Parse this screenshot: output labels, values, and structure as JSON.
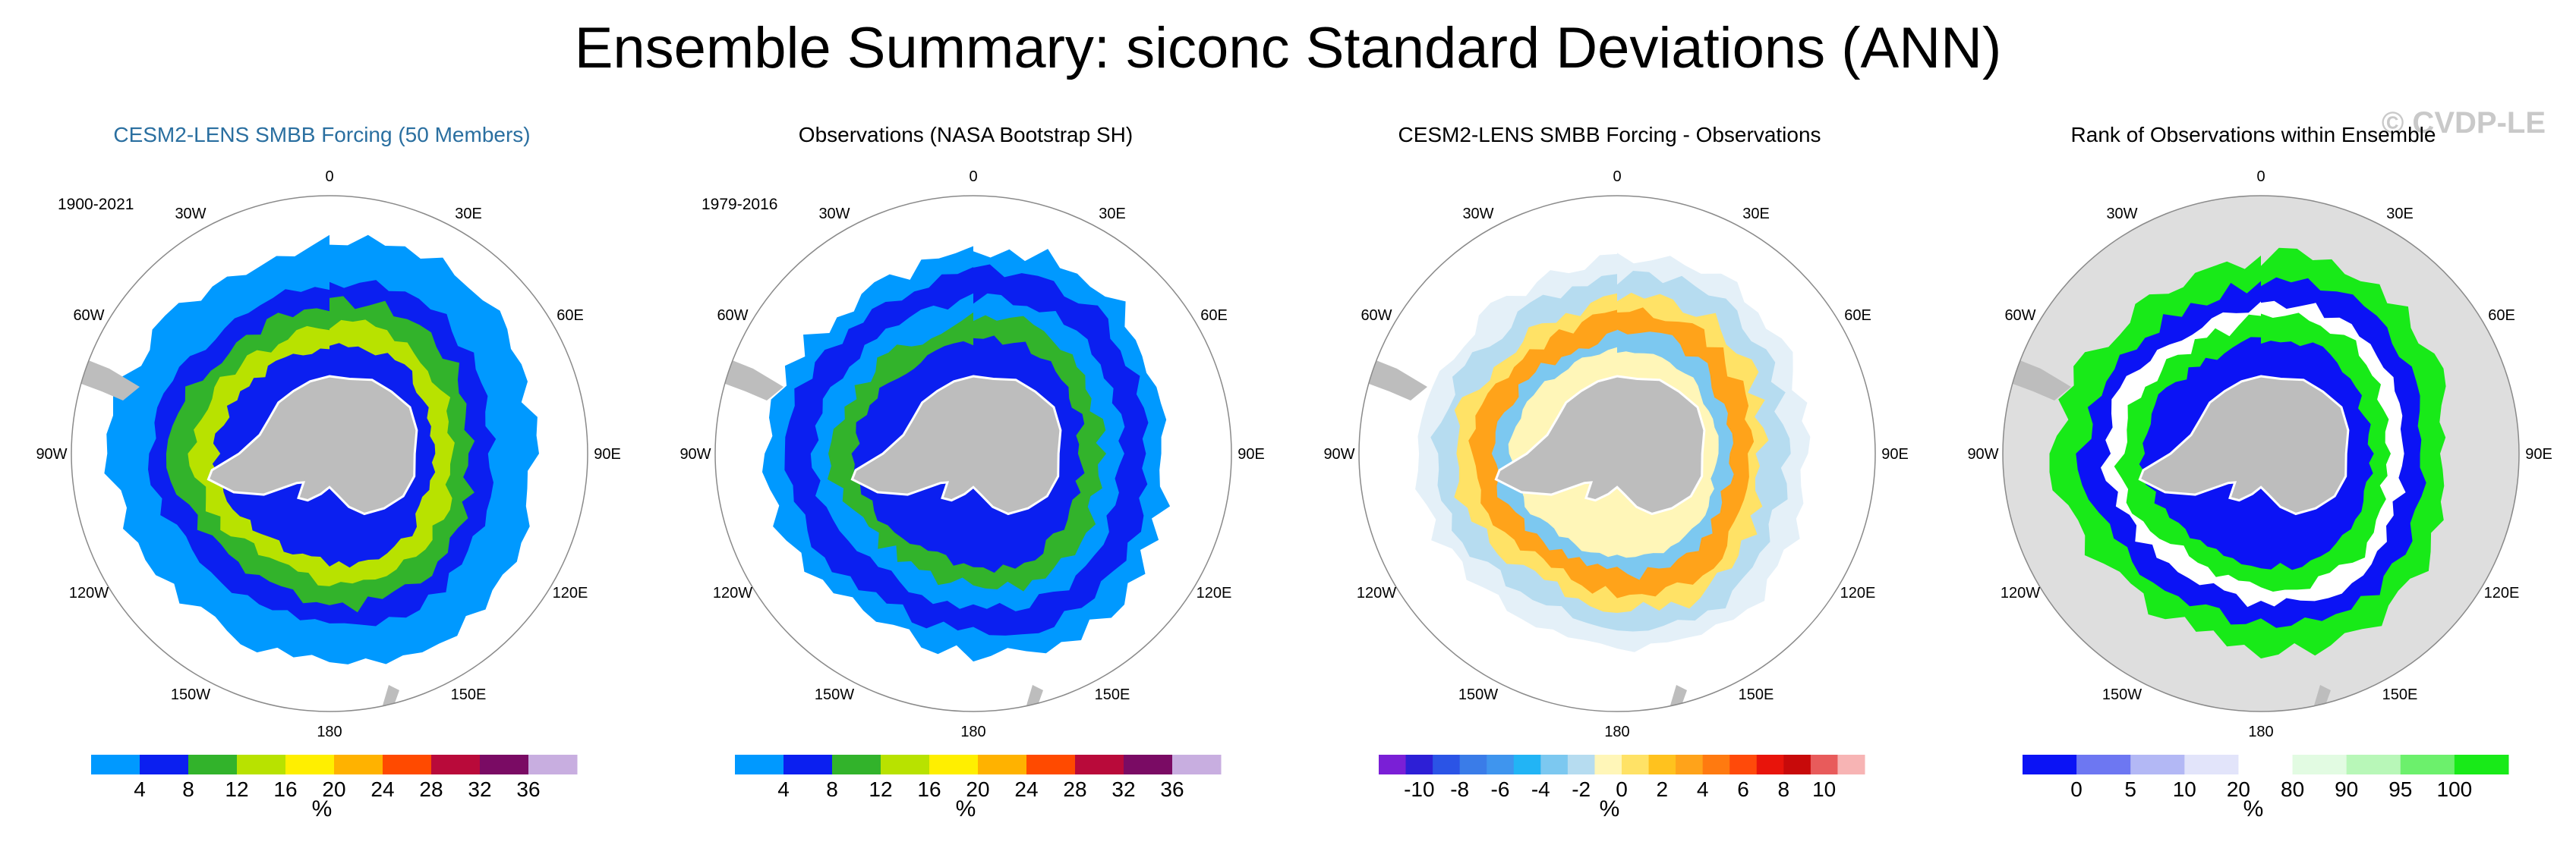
{
  "title": "Ensemble Summary: siconc Standard Deviations (ANN)",
  "watermark": "© CVDP-LE",
  "lon_labels": [
    "0",
    "30E",
    "60E",
    "90E",
    "120E",
    "150E",
    "180",
    "150W",
    "120W",
    "90W",
    "60W",
    "30W"
  ],
  "panels": [
    {
      "title": "CESM2-LENS SMBB Forcing (50 Members)",
      "title_color": "#2a6fa0",
      "period": "1900-2021",
      "colorbar": {
        "colors": [
          "#0099ff",
          "#0b1ff0",
          "#32b32b",
          "#b8e200",
          "#ffef00",
          "#ffb200",
          "#ff4a00",
          "#b90a3a",
          "#7a0b64",
          "#c8aee0"
        ],
        "tick_labels": [
          "4",
          "8",
          "12",
          "16",
          "20",
          "24",
          "28",
          "32",
          "36"
        ],
        "unit": "%"
      }
    },
    {
      "title": "Observations (NASA Bootstrap SH)",
      "title_color": "#000000",
      "period": "1979-2016",
      "colorbar": {
        "colors": [
          "#0099ff",
          "#0b1ff0",
          "#32b32b",
          "#b8e200",
          "#ffef00",
          "#ffb200",
          "#ff4a00",
          "#b90a3a",
          "#7a0b64",
          "#c8aee0"
        ],
        "tick_labels": [
          "4",
          "8",
          "12",
          "16",
          "20",
          "24",
          "28",
          "32",
          "36"
        ],
        "unit": "%"
      }
    },
    {
      "title": "CESM2-LENS SMBB Forcing - Observations",
      "title_color": "#000000",
      "period": "",
      "colorbar": {
        "colors": [
          "#7a1fd6",
          "#2d1fd6",
          "#2b54e6",
          "#3a7ce8",
          "#3f95ee",
          "#22b4f5",
          "#7cc8f0",
          "#b6dcf0",
          "#fff6b8",
          "#ffe266",
          "#ffc21e",
          "#ffa31a",
          "#ff7a10",
          "#ff4a0a",
          "#e8140b",
          "#c80a0a",
          "#e85b5b",
          "#f7b4b4"
        ],
        "tick_labels": [
          "-10",
          "-8",
          "-6",
          "-4",
          "-2",
          "0",
          "2",
          "4",
          "6",
          "8",
          "10"
        ],
        "unit": "%"
      }
    },
    {
      "title": "Rank of Observations within Ensemble",
      "title_color": "#000000",
      "period": "",
      "colorbar": {
        "colors": [
          "#0b13f5",
          "#6d77f2",
          "#b3b8f5",
          "#e2e4fa",
          "#ffffff",
          "#e2fbe2",
          "#b8f7b8",
          "#6cf06c",
          "#18ea18"
        ],
        "tick_labels": [
          "0",
          "5",
          "10",
          "20",
          "80",
          "90",
          "95",
          "100"
        ],
        "unit": "%"
      }
    }
  ]
}
